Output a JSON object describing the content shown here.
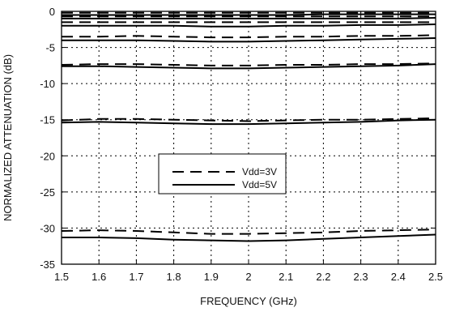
{
  "chart_data": {
    "type": "line",
    "xlabel": "FREQUENCY (GHz)",
    "ylabel": "NORMALIZED ATTENUATION (dB)",
    "xlim": [
      1.5,
      2.5
    ],
    "ylim": [
      -35,
      0
    ],
    "x_ticks": [
      "1.5",
      "1.6",
      "1.7",
      "1.8",
      "1.9",
      "2",
      "2.1",
      "2.2",
      "2.3",
      "2.4",
      "2.5"
    ],
    "y_ticks": [
      "0",
      "-5",
      "-10",
      "-15",
      "-20",
      "-25",
      "-30",
      "-35"
    ],
    "grid": true,
    "legend_position": "center-left",
    "legend": [
      {
        "label": "Vdd=3V",
        "style": "dashed"
      },
      {
        "label": "Vdd=5V",
        "style": "solid"
      }
    ],
    "x": [
      1.5,
      1.6,
      1.7,
      1.8,
      1.9,
      2.0,
      2.1,
      2.2,
      2.3,
      2.4,
      2.5
    ],
    "series": [
      {
        "legend": "Vdd=3V",
        "style": "dashed",
        "values": [
          -0.2,
          -0.2,
          -0.2,
          -0.2,
          -0.2,
          -0.2,
          -0.2,
          -0.2,
          -0.2,
          -0.2,
          -0.2
        ]
      },
      {
        "legend": "Vdd=3V",
        "style": "dashed",
        "values": [
          -0.7,
          -0.7,
          -0.7,
          -0.7,
          -0.7,
          -0.7,
          -0.7,
          -0.7,
          -0.7,
          -0.7,
          -0.7
        ]
      },
      {
        "legend": "Vdd=3V",
        "style": "dashed",
        "values": [
          -1.5,
          -1.5,
          -1.5,
          -1.5,
          -1.5,
          -1.5,
          -1.5,
          -1.5,
          -1.5,
          -1.5,
          -1.5
        ]
      },
      {
        "legend": "Vdd=3V",
        "style": "dashed",
        "values": [
          -3.5,
          -3.5,
          -3.4,
          -3.5,
          -3.6,
          -3.6,
          -3.5,
          -3.5,
          -3.4,
          -3.4,
          -3.3
        ]
      },
      {
        "legend": "Vdd=3V",
        "style": "dashed",
        "values": [
          -7.4,
          -7.3,
          -7.3,
          -7.4,
          -7.5,
          -7.5,
          -7.4,
          -7.4,
          -7.3,
          -7.3,
          -7.2
        ]
      },
      {
        "legend": "Vdd=3V",
        "style": "dashed",
        "values": [
          -15.1,
          -14.9,
          -14.9,
          -15.0,
          -15.1,
          -15.2,
          -15.1,
          -15.0,
          -15.0,
          -14.9,
          -14.8
        ]
      },
      {
        "legend": "Vdd=3V",
        "style": "dashed",
        "values": [
          -30.4,
          -30.3,
          -30.4,
          -30.6,
          -30.8,
          -30.8,
          -30.7,
          -30.6,
          -30.4,
          -30.3,
          -30.2
        ]
      },
      {
        "legend": "Vdd=5V",
        "style": "solid",
        "values": [
          -0.5,
          -0.5,
          -0.5,
          -0.5,
          -0.5,
          -0.5,
          -0.5,
          -0.4,
          -0.4,
          -0.4,
          -0.4
        ]
      },
      {
        "legend": "Vdd=5V",
        "style": "solid",
        "values": [
          -1.0,
          -1.0,
          -1.0,
          -1.0,
          -1.0,
          -1.0,
          -1.0,
          -1.0,
          -1.0,
          -1.0,
          -0.9
        ]
      },
      {
        "legend": "Vdd=5V",
        "style": "solid",
        "values": [
          -2.0,
          -2.0,
          -2.0,
          -2.0,
          -2.1,
          -2.1,
          -2.0,
          -2.0,
          -1.9,
          -1.9,
          -1.8
        ]
      },
      {
        "legend": "Vdd=5V",
        "style": "solid",
        "values": [
          -4.0,
          -4.0,
          -4.0,
          -4.1,
          -4.2,
          -4.2,
          -4.1,
          -4.0,
          -3.9,
          -3.8,
          -3.7
        ]
      },
      {
        "legend": "Vdd=5V",
        "style": "solid",
        "values": [
          -7.6,
          -7.6,
          -7.7,
          -7.8,
          -7.9,
          -7.9,
          -7.8,
          -7.7,
          -7.6,
          -7.5,
          -7.3
        ]
      },
      {
        "legend": "Vdd=5V",
        "style": "solid",
        "values": [
          -15.4,
          -15.3,
          -15.4,
          -15.5,
          -15.6,
          -15.6,
          -15.5,
          -15.4,
          -15.3,
          -15.1,
          -15.0
        ]
      },
      {
        "legend": "Vdd=5V",
        "style": "solid",
        "values": [
          -31.3,
          -31.3,
          -31.4,
          -31.6,
          -31.7,
          -31.8,
          -31.7,
          -31.5,
          -31.3,
          -31.1,
          -30.9
        ]
      }
    ]
  }
}
